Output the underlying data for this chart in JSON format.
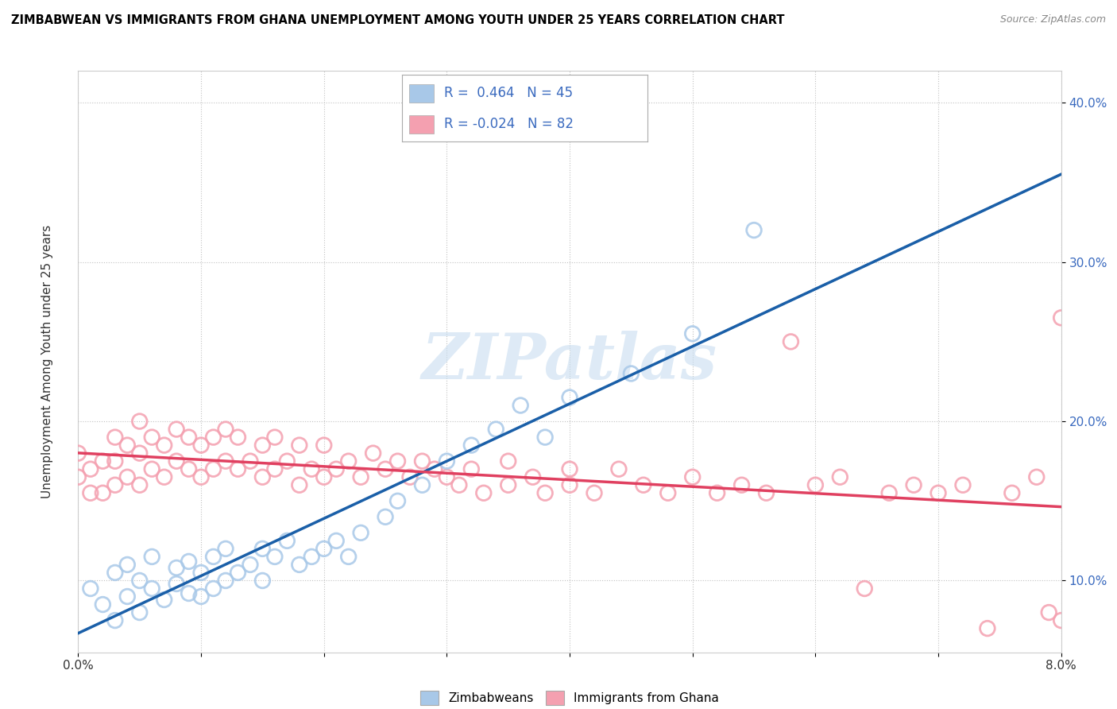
{
  "title": "ZIMBABWEAN VS IMMIGRANTS FROM GHANA UNEMPLOYMENT AMONG YOUTH UNDER 25 YEARS CORRELATION CHART",
  "source": "Source: ZipAtlas.com",
  "ylabel": "Unemployment Among Youth under 25 years",
  "xlim": [
    0.0,
    0.08
  ],
  "ylim": [
    0.055,
    0.42
  ],
  "xticks": [
    0.0,
    0.01,
    0.02,
    0.03,
    0.04,
    0.05,
    0.06,
    0.07,
    0.08
  ],
  "xticklabels": [
    "0.0%",
    "",
    "",
    "",
    "",
    "",
    "",
    "",
    "8.0%"
  ],
  "yticks": [
    0.1,
    0.2,
    0.3,
    0.4
  ],
  "yticklabels": [
    "10.0%",
    "20.0%",
    "30.0%",
    "40.0%"
  ],
  "legend_text1": "R =  0.464   N = 45",
  "legend_text2": "R = -0.024   N = 82",
  "series1_color": "#a8c8e8",
  "series2_color": "#f4a0b0",
  "line1_color": "#1a5fa8",
  "line2_color": "#e04060",
  "watermark": "ZIPatlas",
  "series1_name": "Zimbabweans",
  "series2_name": "Immigrants from Ghana",
  "legend_color": "#3a6abf",
  "zimbabweans_x": [
    0.001,
    0.002,
    0.003,
    0.003,
    0.004,
    0.004,
    0.005,
    0.005,
    0.006,
    0.006,
    0.007,
    0.008,
    0.008,
    0.009,
    0.009,
    0.01,
    0.01,
    0.011,
    0.011,
    0.012,
    0.012,
    0.013,
    0.014,
    0.015,
    0.015,
    0.016,
    0.017,
    0.018,
    0.019,
    0.02,
    0.021,
    0.022,
    0.023,
    0.025,
    0.026,
    0.028,
    0.03,
    0.032,
    0.034,
    0.036,
    0.038,
    0.04,
    0.045,
    0.05,
    0.055
  ],
  "zimbabweans_y": [
    0.095,
    0.085,
    0.105,
    0.075,
    0.09,
    0.11,
    0.08,
    0.1,
    0.115,
    0.095,
    0.088,
    0.098,
    0.108,
    0.092,
    0.112,
    0.09,
    0.105,
    0.095,
    0.115,
    0.1,
    0.12,
    0.105,
    0.11,
    0.1,
    0.12,
    0.115,
    0.125,
    0.11,
    0.115,
    0.12,
    0.125,
    0.115,
    0.13,
    0.14,
    0.15,
    0.16,
    0.175,
    0.185,
    0.195,
    0.21,
    0.19,
    0.215,
    0.23,
    0.255,
    0.32
  ],
  "ghana_x": [
    0.0,
    0.0,
    0.001,
    0.001,
    0.002,
    0.002,
    0.003,
    0.003,
    0.003,
    0.004,
    0.004,
    0.005,
    0.005,
    0.005,
    0.006,
    0.006,
    0.007,
    0.007,
    0.008,
    0.008,
    0.009,
    0.009,
    0.01,
    0.01,
    0.011,
    0.011,
    0.012,
    0.012,
    0.013,
    0.013,
    0.014,
    0.015,
    0.015,
    0.016,
    0.016,
    0.017,
    0.018,
    0.018,
    0.019,
    0.02,
    0.02,
    0.021,
    0.022,
    0.023,
    0.024,
    0.025,
    0.026,
    0.027,
    0.028,
    0.029,
    0.03,
    0.031,
    0.032,
    0.033,
    0.035,
    0.035,
    0.037,
    0.038,
    0.04,
    0.04,
    0.042,
    0.044,
    0.046,
    0.048,
    0.05,
    0.052,
    0.054,
    0.056,
    0.058,
    0.06,
    0.062,
    0.064,
    0.066,
    0.068,
    0.07,
    0.072,
    0.074,
    0.076,
    0.078,
    0.079,
    0.08,
    0.08
  ],
  "ghana_y": [
    0.165,
    0.18,
    0.155,
    0.17,
    0.155,
    0.175,
    0.16,
    0.175,
    0.19,
    0.165,
    0.185,
    0.16,
    0.18,
    0.2,
    0.17,
    0.19,
    0.165,
    0.185,
    0.175,
    0.195,
    0.17,
    0.19,
    0.165,
    0.185,
    0.17,
    0.19,
    0.175,
    0.195,
    0.17,
    0.19,
    0.175,
    0.165,
    0.185,
    0.17,
    0.19,
    0.175,
    0.16,
    0.185,
    0.17,
    0.165,
    0.185,
    0.17,
    0.175,
    0.165,
    0.18,
    0.17,
    0.175,
    0.165,
    0.175,
    0.17,
    0.165,
    0.16,
    0.17,
    0.155,
    0.175,
    0.16,
    0.165,
    0.155,
    0.17,
    0.16,
    0.155,
    0.17,
    0.16,
    0.155,
    0.165,
    0.155,
    0.16,
    0.155,
    0.25,
    0.16,
    0.165,
    0.095,
    0.155,
    0.16,
    0.155,
    0.16,
    0.07,
    0.155,
    0.165,
    0.08,
    0.265,
    0.075
  ]
}
